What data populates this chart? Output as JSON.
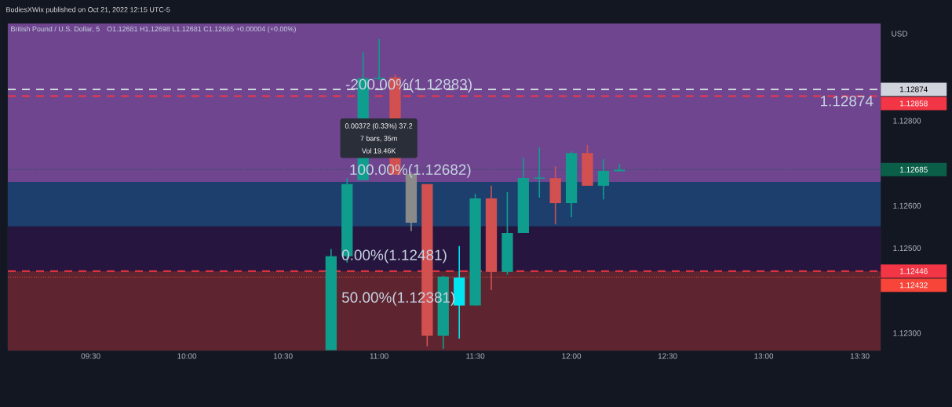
{
  "chart_data": {
    "type": "candlestick",
    "title": "British Pound / U.S. Dollar, 5",
    "subtitle": "O1.12681 H1.12698 L1.12681 C1.12685 +0.00004 (+0.00%)",
    "ylabel": "USD",
    "x": [
      10.75,
      10.8333,
      10.9167,
      11,
      11.0833,
      11.1667,
      11.25,
      11.3333,
      11.4167,
      11.5,
      11.5833,
      11.6667,
      11.75,
      11.8333,
      11.9167,
      12,
      12.0833,
      12.1667,
      12.25
    ],
    "ohlc": [
      [
        1.1226,
        1.12498,
        1.1226,
        1.12481
      ],
      [
        1.12481,
        1.12665,
        1.12466,
        1.12651
      ],
      [
        1.1266,
        1.12962,
        1.1266,
        1.129
      ],
      [
        1.129,
        1.12992,
        1.12895,
        1.129
      ],
      [
        1.12902,
        1.12909,
        1.12673,
        1.12673
      ],
      [
        1.12675,
        1.1268,
        1.1254,
        1.1256
      ],
      [
        1.12651,
        1.12651,
        1.12269,
        1.12294
      ],
      [
        1.12294,
        1.12435,
        1.12263,
        1.12433
      ],
      [
        1.12365,
        1.12505,
        1.12287,
        1.12431
      ],
      [
        1.12365,
        1.12628,
        1.12365,
        1.12617
      ],
      [
        1.12617,
        1.12647,
        1.12401,
        1.12444
      ],
      [
        1.12444,
        1.12632,
        1.12438,
        1.12536
      ],
      [
        1.12536,
        1.12713,
        1.12536,
        1.12665
      ],
      [
        1.12665,
        1.12737,
        1.12619,
        1.12665
      ],
      [
        1.12665,
        1.12693,
        1.12556,
        1.12606
      ],
      [
        1.12606,
        1.12728,
        1.12573,
        1.12724
      ],
      [
        1.12724,
        1.12743,
        1.12647,
        1.12647
      ],
      [
        1.12647,
        1.1271,
        1.12615,
        1.12682
      ],
      [
        1.12681,
        1.12698,
        1.12681,
        1.12685
      ]
    ],
    "colors": [
      "#0f9e8e",
      "#0f9e8e",
      "#0f9e8e",
      "#0f9e8e",
      "#d2504f",
      "#8a8a8a",
      "#d2504f",
      "#0f9e8e",
      "#00e5f0",
      "#0f9e8e",
      "#d2504f",
      "#0f9e8e",
      "#0f9e8e",
      "#0f9e8e",
      "#d2504f",
      "#0f9e8e",
      "#d2504f",
      "#0f9e8e",
      "#0f9e8e"
    ],
    "xlim": [
      9.069,
      13.608
    ],
    "ylim": [
      1.12259,
      1.13029
    ],
    "xticks": [
      {
        "value": 9.5,
        "label": "09:30"
      },
      {
        "value": 10,
        "label": "10:00"
      },
      {
        "value": 10.5,
        "label": "10:30"
      },
      {
        "value": 11,
        "label": "11:00"
      },
      {
        "value": 11.5,
        "label": "11:30"
      },
      {
        "value": 12,
        "label": "12:00"
      },
      {
        "value": 12.5,
        "label": "12:30"
      },
      {
        "value": 13,
        "label": "13:00"
      },
      {
        "value": 13.5,
        "label": "13:30"
      }
    ],
    "yticks": [
      {
        "value": 1.123,
        "label": "1.12300"
      },
      {
        "value": 1.125,
        "label": "1.12500"
      },
      {
        "value": 1.126,
        "label": "1.12600"
      },
      {
        "value": 1.128,
        "label": "1.12800"
      }
    ],
    "grid": true,
    "bands": [
      {
        "axis": "y",
        "from": 1.12656,
        "to": 1.13029,
        "color": "#6f4590"
      },
      {
        "axis": "y",
        "from": 1.12551,
        "to": 1.12656,
        "color": "#1d3f6e"
      },
      {
        "axis": "y",
        "from": 1.12446,
        "to": 1.12551,
        "color": "#26163f"
      },
      {
        "axis": "y",
        "from": 1.12259,
        "to": 1.12446,
        "color": "#5e2530"
      }
    ],
    "ref_lines": [
      {
        "axis": "y",
        "value": 1.12874,
        "label": "1.12874",
        "color": "#d1d4dc",
        "line_style": "dashed"
      },
      {
        "axis": "y",
        "value": 1.12858,
        "label": "1.12858",
        "color": "#f23645",
        "line_style": "dashed"
      },
      {
        "axis": "y",
        "value": 1.12685,
        "label": "1.12685",
        "color": "#0b5e48",
        "line_style": "dotted"
      },
      {
        "axis": "y",
        "value": 1.12446,
        "label": "1.12446",
        "color": "#f23645",
        "line_style": "dashed"
      },
      {
        "axis": "y",
        "value": 1.12432,
        "label": "1.12432",
        "color": "#f7453a",
        "line_style": "dotted"
      }
    ],
    "annotations": [
      "BodiesXWix published on Oct 21, 2022 12:15 UTC-5",
      {
        "text": "-200.00%(1.12883)",
        "x": 10.81,
        "y": 1.12883
      },
      {
        "text": "100.00%(1.12682)",
        "x": 10.83,
        "y": 1.12682
      },
      {
        "text": "0.00%(1.12481)",
        "x": 10.79,
        "y": 1.12481
      },
      {
        "text": "50.00%(1.12381)",
        "x": 10.79,
        "y": 1.12381
      },
      "1.12874",
      "0.00372 (0.33%) 37.2",
      "7 bars, 35m",
      "Vol 19.46K"
    ]
  }
}
